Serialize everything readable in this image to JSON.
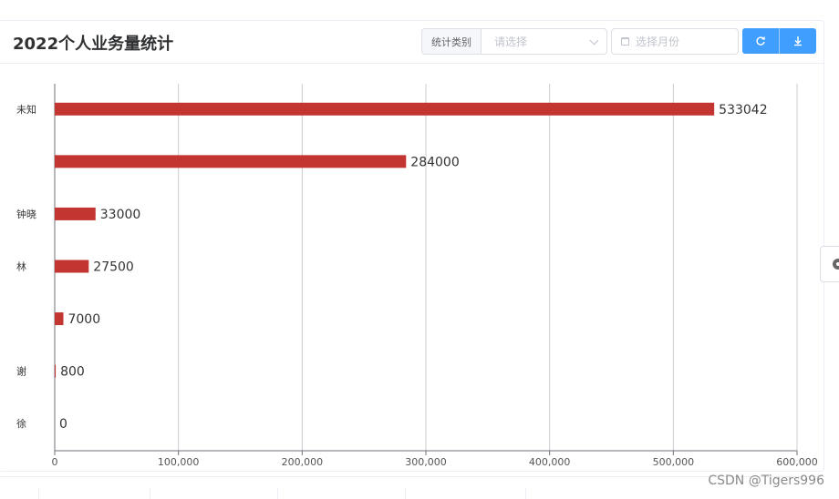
{
  "header": {
    "title": "2022个人业务量统计",
    "filter_label": "统计类别",
    "select_placeholder": "请选择",
    "month_placeholder": "选择月份"
  },
  "buttons": {
    "refresh_icon": "refresh-icon",
    "download_icon": "download-icon"
  },
  "colors": {
    "bar": "#c23531",
    "button": "#409eff"
  },
  "chart_data": {
    "type": "bar",
    "orientation": "horizontal",
    "categories": [
      "未知",
      "",
      "钟晓",
      "林",
      "",
      "谢",
      "徐"
    ],
    "values": [
      533042,
      284000,
      33000,
      27500,
      7000,
      800,
      0
    ],
    "data_labels": [
      "533042",
      "284000",
      "33000",
      "27500",
      "7000",
      "800",
      "0"
    ],
    "x_ticks": [
      "0",
      "100,000",
      "200,000",
      "300,000",
      "400,000",
      "500,000",
      "600,000"
    ],
    "xlim": [
      0,
      600000
    ],
    "grid": true,
    "legend": "none"
  },
  "watermark": "CSDN @Tigers996"
}
